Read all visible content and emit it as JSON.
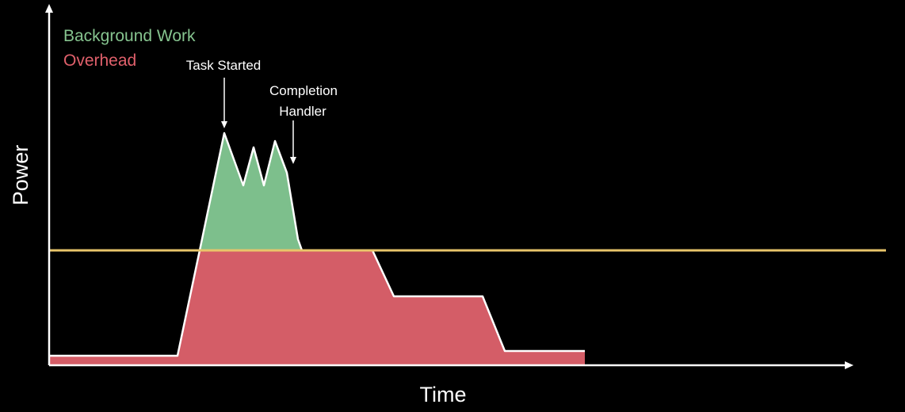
{
  "legend": {
    "background_work": "Background Work",
    "overhead": "Overhead"
  },
  "annotations": {
    "task_started": "Task Started",
    "completion_line1": "Completion",
    "completion_line2": "Handler"
  },
  "axes": {
    "y_label": "Power",
    "x_label": "Time"
  },
  "colors": {
    "background": "#000000",
    "background_work": "#7dbf8c",
    "background_work_text": "#86c48f",
    "overhead": "#d45d67",
    "overhead_text": "#e0606b",
    "threshold_line": "#e8c56a",
    "outline": "#ffffff"
  }
}
